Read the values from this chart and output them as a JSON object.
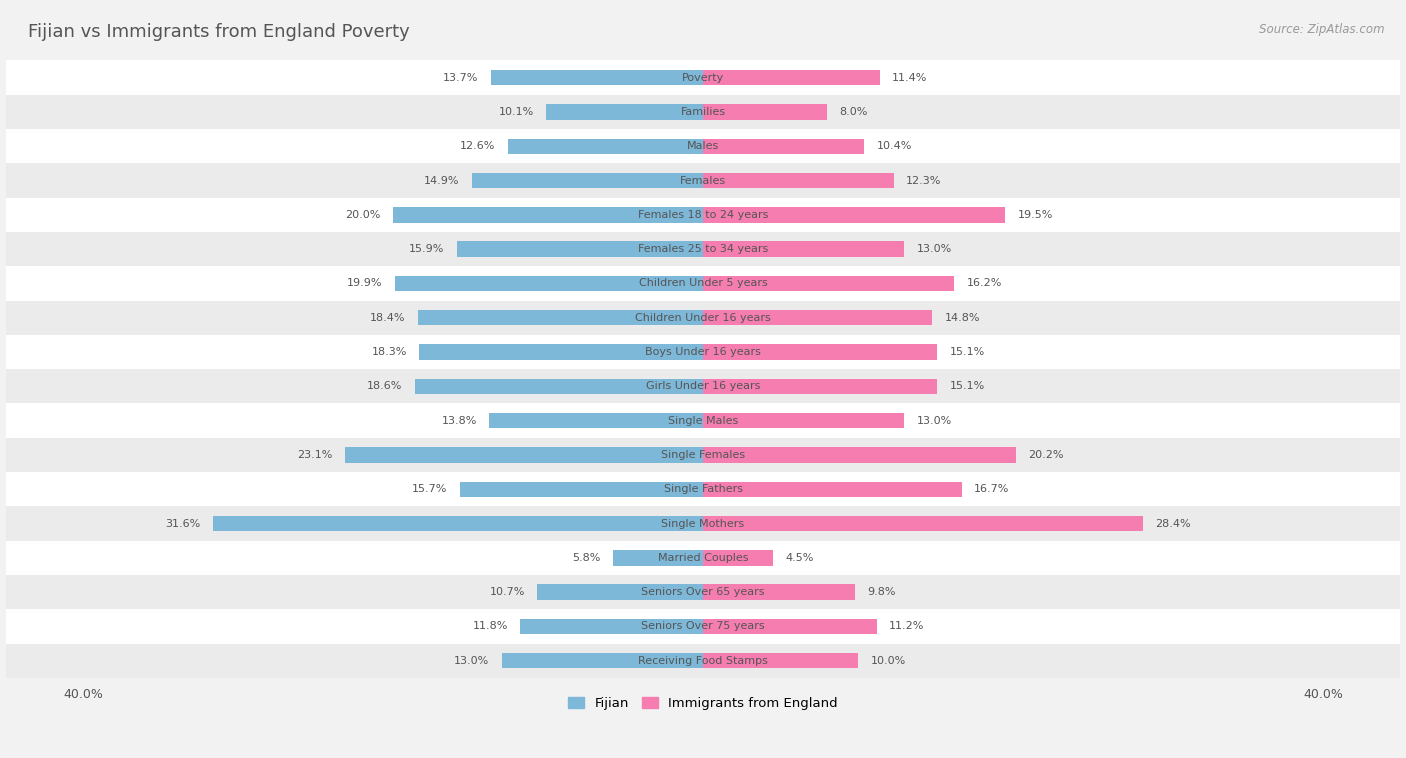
{
  "title": "Fijian vs Immigrants from England Poverty",
  "source": "Source: ZipAtlas.com",
  "categories": [
    "Poverty",
    "Families",
    "Males",
    "Females",
    "Females 18 to 24 years",
    "Females 25 to 34 years",
    "Children Under 5 years",
    "Children Under 16 years",
    "Boys Under 16 years",
    "Girls Under 16 years",
    "Single Males",
    "Single Females",
    "Single Fathers",
    "Single Mothers",
    "Married Couples",
    "Seniors Over 65 years",
    "Seniors Over 75 years",
    "Receiving Food Stamps"
  ],
  "fijian_values": [
    13.7,
    10.1,
    12.6,
    14.9,
    20.0,
    15.9,
    19.9,
    18.4,
    18.3,
    18.6,
    13.8,
    23.1,
    15.7,
    31.6,
    5.8,
    10.7,
    11.8,
    13.0
  ],
  "england_values": [
    11.4,
    8.0,
    10.4,
    12.3,
    19.5,
    13.0,
    16.2,
    14.8,
    15.1,
    15.1,
    13.0,
    20.2,
    16.7,
    28.4,
    4.5,
    9.8,
    11.2,
    10.0
  ],
  "fijian_color": "#7db8d8",
  "england_color": "#f57db0",
  "row_colors": [
    "#ffffff",
    "#ebebeb"
  ],
  "background_color": "#f2f2f2",
  "xlim": 40.0,
  "legend_labels": [
    "Fijian",
    "Immigrants from England"
  ],
  "title_color": "#555555",
  "value_color": "#555555",
  "label_color": "#555555",
  "source_color": "#999999"
}
